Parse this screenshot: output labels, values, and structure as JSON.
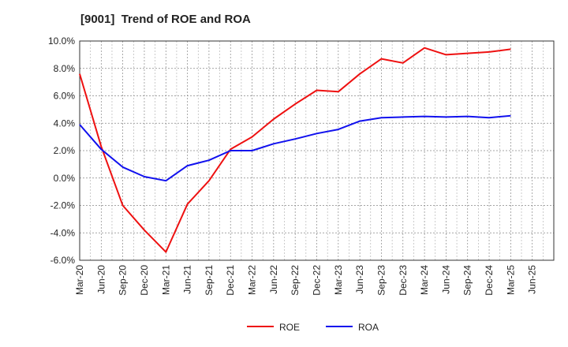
{
  "chart_data": {
    "type": "line",
    "title": "[9001]  Trend of ROE and ROA",
    "xlabel": "",
    "ylabel": "",
    "categories": [
      "Mar-20",
      "Jun-20",
      "Sep-20",
      "Dec-20",
      "Mar-21",
      "Jun-21",
      "Sep-21",
      "Dec-21",
      "Mar-22",
      "Jun-22",
      "Sep-22",
      "Dec-22",
      "Mar-23",
      "Jun-23",
      "Sep-23",
      "Dec-23",
      "Mar-24",
      "Jun-24",
      "Sep-24",
      "Dec-24",
      "Mar-25",
      "Jun-25"
    ],
    "ylim": [
      -6.0,
      10.0
    ],
    "yticks": [
      "10.0%",
      "8.0%",
      "6.0%",
      "4.0%",
      "2.0%",
      "0.0%",
      "-2.0%",
      "-4.0%",
      "-6.0%"
    ],
    "ytick_values": [
      10,
      8,
      6,
      4,
      2,
      0,
      -2,
      -4,
      -6
    ],
    "grid": true,
    "legend_position": "bottom-center",
    "series": [
      {
        "name": "ROE",
        "color": "#ee1111",
        "values": [
          7.6,
          2.3,
          -2.0,
          -3.8,
          -5.4,
          -1.9,
          -0.2,
          2.1,
          3.0,
          4.3,
          5.4,
          6.4,
          6.3,
          7.6,
          8.7,
          8.4,
          9.5,
          9.0,
          9.1,
          9.2,
          9.4,
          null
        ]
      },
      {
        "name": "ROA",
        "color": "#1111ee",
        "values": [
          3.9,
          2.1,
          0.8,
          0.1,
          -0.2,
          0.9,
          1.3,
          2.0,
          2.0,
          2.5,
          2.85,
          3.25,
          3.55,
          4.15,
          4.4,
          4.45,
          4.5,
          4.45,
          4.5,
          4.4,
          4.55,
          null
        ]
      }
    ]
  }
}
